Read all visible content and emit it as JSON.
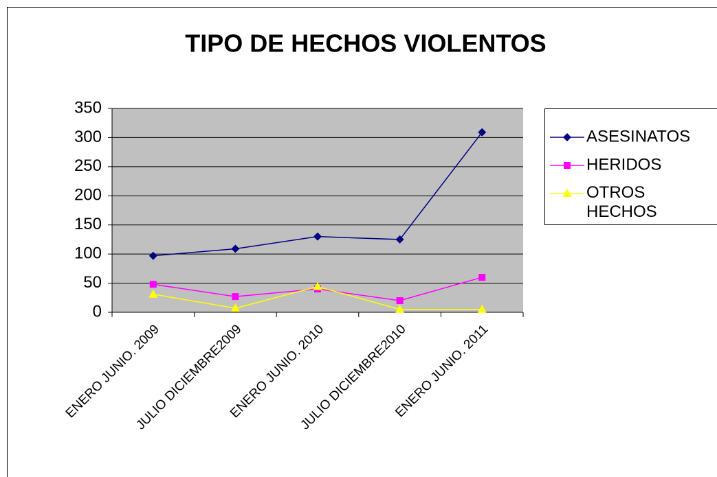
{
  "chart_data": {
    "type": "line",
    "title": "TIPO DE HECHOS VIOLENTOS",
    "categories": [
      "ENERO JUNIO. 2009",
      "JULIO DICIEMBRE2009",
      "ENERO JUNIO. 2010",
      "JULIO DICIEMBRE2010",
      "ENERO JUNIO. 2011"
    ],
    "series": [
      {
        "name": "ASESINATOS",
        "color": "#000080",
        "marker": "diamond",
        "values": [
          97,
          109,
          130,
          125,
          309
        ]
      },
      {
        "name": "HERIDOS",
        "color": "#ff00ff",
        "marker": "square",
        "values": [
          48,
          27,
          40,
          20,
          60
        ]
      },
      {
        "name": "OTROS HECHOS",
        "color": "#ffff00",
        "marker": "triangle",
        "values": [
          31,
          7,
          44,
          5,
          5
        ]
      }
    ],
    "ylim": [
      0,
      350
    ],
    "yticks": [
      0,
      50,
      100,
      150,
      200,
      250,
      300,
      350
    ],
    "grid": true,
    "plot_background": "#c0c0c0",
    "legend": "right"
  }
}
